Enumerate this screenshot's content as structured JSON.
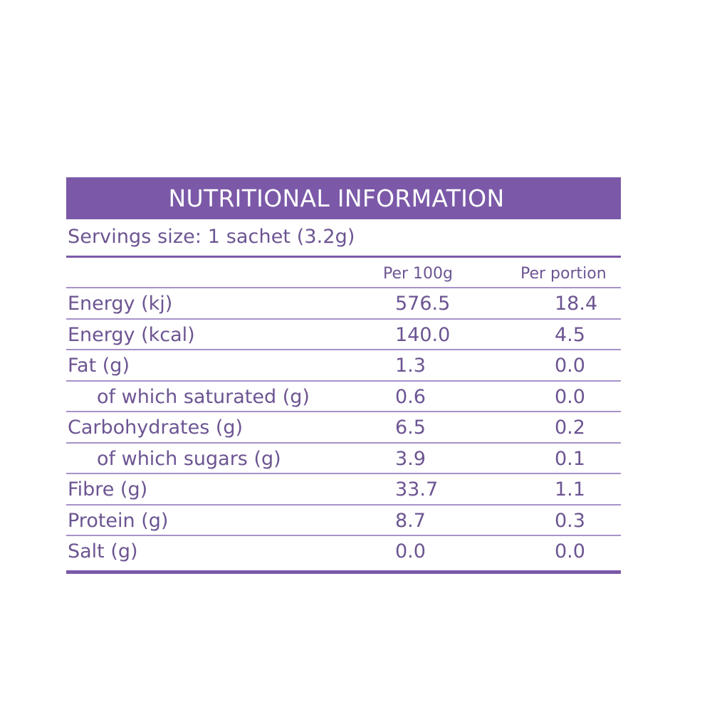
{
  "title": "NUTRITIONAL INFORMATION",
  "serving_size": "Servings size: 1 sachet (3.2g)",
  "columns": {
    "per_100g": "Per 100g",
    "per_portion": "Per portion"
  },
  "rows": [
    {
      "label": "Energy (kj)",
      "per_100g": "576.5",
      "per_portion": "18.4"
    },
    {
      "label": "Energy (kcal)",
      "per_100g": "140.0",
      "per_portion": "4.5"
    },
    {
      "label": "Fat (g)",
      "per_100g": "1.3",
      "per_portion": "0.0"
    },
    {
      "label": "of which saturated (g)",
      "per_100g": "0.6",
      "per_portion": "0.0"
    },
    {
      "label": "Carbohydrates (g)",
      "per_100g": "6.5",
      "per_portion": "0.2"
    },
    {
      "label": "of which sugars (g)",
      "per_100g": "3.9",
      "per_portion": "0.1"
    },
    {
      "label": "Fibre (g)",
      "per_100g": "33.7",
      "per_portion": "1.1"
    },
    {
      "label": "Protein (g)",
      "per_100g": "8.7",
      "per_portion": "0.3"
    },
    {
      "label": "Salt (g)",
      "per_100g": "0.0",
      "per_portion": "0.0"
    }
  ],
  "colors": {
    "accent": "#7b59a8",
    "text": "#6c5592",
    "rule": "#a792c8"
  }
}
